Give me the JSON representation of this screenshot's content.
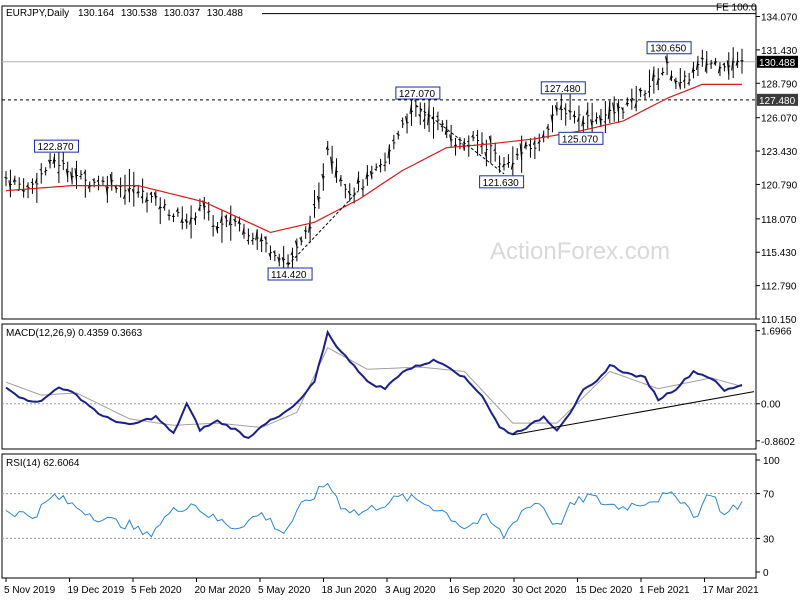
{
  "chart_data": [
    {
      "type": "line",
      "panel": "price",
      "title": "EURJPY,Daily",
      "ohlc": [
        "130.164",
        "130.538",
        "130.037",
        "130.488"
      ],
      "watermark": "ActionForex.com",
      "fe_label": "FE 100.0",
      "fe_level": 134.3,
      "support_level": 127.48,
      "support_label": "127.480",
      "current_level": 130.488,
      "current_label": "130.488",
      "ylim": [
        110.15,
        134.9
      ],
      "y_ticks": [
        "134.070",
        "131.430",
        "128.790",
        "126.070",
        "123.430",
        "120.790",
        "118.070",
        "115.430",
        "112.790",
        "110.150"
      ],
      "y_tick_values": [
        134.07,
        131.43,
        128.79,
        126.07,
        123.43,
        120.79,
        118.07,
        115.43,
        112.79,
        110.15
      ],
      "x_ticks": [
        "5 Nov 2019",
        "19 Dec 2019",
        "5 Feb 2020",
        "20 Mar 2020",
        "5 May 2020",
        "18 Jun 2020",
        "3 Aug 2020",
        "16 Sep 2020",
        "30 Oct 2020",
        "15 Dec 2020",
        "1 Feb 2021",
        "17 Mar 2021"
      ],
      "callouts": [
        {
          "label": "122.870",
          "value": 122.87,
          "date_index": 11
        },
        {
          "label": "114.420",
          "value": 114.42,
          "date_index": 64
        },
        {
          "label": "127.070",
          "value": 127.07,
          "date_index": 93
        },
        {
          "label": "121.630",
          "value": 121.63,
          "date_index": 112
        },
        {
          "label": "127.480",
          "value": 127.48,
          "date_index": 126
        },
        {
          "label": "125.070",
          "value": 125.07,
          "date_index": 130
        },
        {
          "label": "130.650",
          "value": 130.65,
          "date_index": 150
        }
      ],
      "price_anchors": [
        [
          0,
          121.3
        ],
        [
          5,
          120.4
        ],
        [
          11,
          122.7
        ],
        [
          15,
          121.8
        ],
        [
          18,
          121.0
        ],
        [
          24,
          120.9
        ],
        [
          29,
          120.4
        ],
        [
          33,
          119.7
        ],
        [
          38,
          118.4
        ],
        [
          42,
          117.8
        ],
        [
          44,
          119.3
        ],
        [
          48,
          117.3
        ],
        [
          52,
          117.9
        ],
        [
          57,
          116.5
        ],
        [
          61,
          115.5
        ],
        [
          64,
          114.6
        ],
        [
          67,
          116.1
        ],
        [
          71,
          119.4
        ],
        [
          73,
          123.9
        ],
        [
          75,
          122.0
        ],
        [
          78,
          120.2
        ],
        [
          82,
          121.1
        ],
        [
          86,
          122.5
        ],
        [
          90,
          125.7
        ],
        [
          93,
          126.6
        ],
        [
          96,
          126.3
        ],
        [
          100,
          125.0
        ],
        [
          103,
          123.8
        ],
        [
          107,
          124.2
        ],
        [
          110,
          123.7
        ],
        [
          113,
          122.2
        ],
        [
          117,
          123.3
        ],
        [
          121,
          124.0
        ],
        [
          124,
          126.3
        ],
        [
          127,
          126.7
        ],
        [
          131,
          126.0
        ],
        [
          134,
          126.1
        ],
        [
          138,
          126.5
        ],
        [
          142,
          127.2
        ],
        [
          145,
          128.3
        ],
        [
          148,
          129.4
        ],
        [
          150,
          130.1
        ],
        [
          153,
          128.6
        ],
        [
          156,
          129.7
        ],
        [
          158,
          130.4
        ]
      ],
      "ma_anchors": [
        [
          0,
          120.3
        ],
        [
          15,
          120.7
        ],
        [
          30,
          120.7
        ],
        [
          45,
          119.4
        ],
        [
          60,
          117.0
        ],
        [
          70,
          117.8
        ],
        [
          80,
          119.6
        ],
        [
          90,
          121.9
        ],
        [
          100,
          123.7
        ],
        [
          110,
          124.0
        ],
        [
          120,
          124.4
        ],
        [
          130,
          125.0
        ],
        [
          140,
          125.8
        ],
        [
          150,
          127.6
        ],
        [
          158,
          128.7
        ]
      ]
    },
    {
      "type": "line",
      "panel": "macd",
      "title": "MACD(12,26,9) 0.4359 0.3663",
      "ylim": [
        -1.05,
        1.85
      ],
      "y_ticks": [
        "1.6966",
        "0.00",
        "-0.8602"
      ],
      "y_tick_values": [
        1.6966,
        0.0,
        -0.8602
      ],
      "macd_anchors": [
        [
          0,
          0.4
        ],
        [
          4,
          0.1
        ],
        [
          8,
          0.05
        ],
        [
          12,
          0.4
        ],
        [
          16,
          0.2
        ],
        [
          22,
          -0.3
        ],
        [
          28,
          -0.5
        ],
        [
          34,
          -0.3
        ],
        [
          38,
          -0.7
        ],
        [
          41,
          0.0
        ],
        [
          44,
          -0.6
        ],
        [
          48,
          -0.4
        ],
        [
          52,
          -0.6
        ],
        [
          55,
          -0.8
        ],
        [
          58,
          -0.5
        ],
        [
          62,
          -0.3
        ],
        [
          66,
          0.0
        ],
        [
          70,
          0.5
        ],
        [
          73,
          1.65
        ],
        [
          76,
          1.2
        ],
        [
          79,
          0.9
        ],
        [
          82,
          0.5
        ],
        [
          86,
          0.35
        ],
        [
          90,
          0.75
        ],
        [
          94,
          0.9
        ],
        [
          97,
          1.0
        ],
        [
          100,
          0.9
        ],
        [
          104,
          0.6
        ],
        [
          108,
          0.2
        ],
        [
          112,
          -0.55
        ],
        [
          115,
          -0.7
        ],
        [
          119,
          -0.5
        ],
        [
          122,
          -0.3
        ],
        [
          125,
          -0.6
        ],
        [
          128,
          -0.2
        ],
        [
          131,
          0.3
        ],
        [
          134,
          0.5
        ],
        [
          137,
          0.9
        ],
        [
          141,
          0.7
        ],
        [
          145,
          0.6
        ],
        [
          148,
          0.1
        ],
        [
          152,
          0.35
        ],
        [
          156,
          0.75
        ],
        [
          160,
          0.6
        ],
        [
          163,
          0.3
        ],
        [
          167,
          0.45
        ]
      ],
      "signal_anchors": [
        [
          0,
          0.5
        ],
        [
          8,
          0.2
        ],
        [
          16,
          0.25
        ],
        [
          28,
          -0.35
        ],
        [
          38,
          -0.5
        ],
        [
          48,
          -0.45
        ],
        [
          58,
          -0.55
        ],
        [
          66,
          -0.2
        ],
        [
          73,
          1.3
        ],
        [
          82,
          0.8
        ],
        [
          94,
          0.85
        ],
        [
          104,
          0.75
        ],
        [
          115,
          -0.45
        ],
        [
          125,
          -0.45
        ],
        [
          137,
          0.75
        ],
        [
          148,
          0.35
        ],
        [
          160,
          0.6
        ],
        [
          167,
          0.4
        ]
      ]
    },
    {
      "type": "line",
      "panel": "rsi",
      "title": "RSI(14) 62.6064",
      "ylim": [
        0,
        100
      ],
      "y_ticks": [
        "100",
        "70",
        "30",
        "0"
      ],
      "y_tick_values": [
        100,
        70,
        30,
        0
      ],
      "rsi_anchors": [
        [
          0,
          55
        ],
        [
          6,
          50
        ],
        [
          11,
          68
        ],
        [
          16,
          58
        ],
        [
          22,
          47
        ],
        [
          28,
          42
        ],
        [
          32,
          32
        ],
        [
          37,
          52
        ],
        [
          42,
          62
        ],
        [
          47,
          48
        ],
        [
          52,
          40
        ],
        [
          58,
          52
        ],
        [
          63,
          35
        ],
        [
          67,
          58
        ],
        [
          71,
          72
        ],
        [
          73,
          80
        ],
        [
          76,
          60
        ],
        [
          80,
          52
        ],
        [
          85,
          60
        ],
        [
          90,
          67
        ],
        [
          94,
          63
        ],
        [
          99,
          55
        ],
        [
          104,
          40
        ],
        [
          109,
          48
        ],
        [
          113,
          32
        ],
        [
          117,
          55
        ],
        [
          121,
          63
        ],
        [
          125,
          40
        ],
        [
          128,
          58
        ],
        [
          132,
          68
        ],
        [
          136,
          61
        ],
        [
          140,
          58
        ],
        [
          145,
          63
        ],
        [
          150,
          68
        ],
        [
          154,
          65
        ],
        [
          156,
          48
        ],
        [
          160,
          72
        ],
        [
          163,
          50
        ],
        [
          167,
          62
        ]
      ]
    }
  ]
}
